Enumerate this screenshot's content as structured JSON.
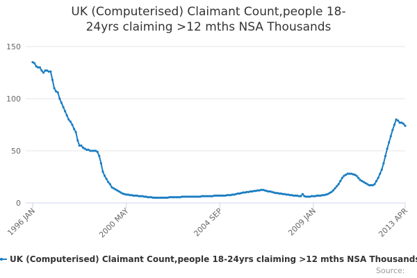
{
  "chart_data": {
    "type": "line",
    "title": "UK (Computerised) Claimant Count,people 18-24yrs claiming >12 mths NSA Thousands",
    "credits": "Source:",
    "categories": [
      "1996 JAN",
      null,
      null,
      null,
      null,
      null,
      null,
      null,
      null,
      null,
      null,
      null,
      null,
      null,
      null,
      null,
      null,
      null,
      null,
      null,
      null,
      null,
      null,
      null,
      null,
      null,
      null,
      null,
      null,
      null,
      null,
      null,
      null,
      null,
      null,
      null,
      null,
      null,
      null,
      null,
      null,
      null,
      null,
      null,
      null,
      null,
      null,
      null,
      null,
      null,
      null,
      null,
      "2000 MAY",
      null,
      null,
      null,
      null,
      null,
      null,
      null,
      null,
      null,
      null,
      null,
      null,
      null,
      null,
      null,
      null,
      null,
      null,
      null,
      null,
      null,
      null,
      null,
      null,
      null,
      null,
      null,
      null,
      null,
      null,
      null,
      null,
      null,
      null,
      null,
      null,
      null,
      null,
      null,
      null,
      null,
      null,
      null,
      null,
      null,
      null,
      null,
      null,
      null,
      null,
      null,
      "2004 SEP",
      null,
      null,
      null,
      null,
      null,
      null,
      null,
      null,
      null,
      null,
      null,
      null,
      null,
      null,
      null,
      null,
      null,
      null,
      null,
      null,
      null,
      null,
      null,
      null,
      null,
      null,
      null,
      null,
      null,
      null,
      null,
      null,
      null,
      null,
      null,
      null,
      null,
      null,
      null,
      null,
      null,
      null,
      null,
      null,
      null,
      null,
      null,
      null,
      null,
      null,
      null,
      "2009 JAN",
      null,
      null,
      null,
      null,
      null,
      null,
      null,
      null,
      null,
      null,
      null,
      null,
      null,
      null,
      null,
      null,
      null,
      null,
      null,
      null,
      null,
      null,
      null,
      null,
      null,
      null,
      null,
      null,
      null,
      null,
      null,
      null,
      null,
      null,
      null,
      null,
      null,
      null,
      null,
      null,
      null,
      null,
      null,
      null,
      null,
      null,
      null,
      null,
      null,
      null,
      "2013 APR"
    ],
    "series": [
      {
        "name": "UK (Computerised) Claimant Count,people 18-24yrs claiming >12 mths NSA Thousands",
        "color": "#1a7dc2",
        "values": [
          135,
          134,
          131,
          130,
          130,
          127,
          125,
          127,
          127,
          126,
          126,
          118,
          110,
          107,
          106,
          100,
          96,
          92,
          88,
          84,
          80,
          78,
          75,
          71,
          68,
          60,
          55,
          55,
          53,
          52,
          51,
          51,
          50,
          50,
          50,
          50,
          49,
          45,
          38,
          30,
          26,
          23,
          20,
          18,
          15,
          14,
          13,
          12,
          11,
          10,
          9,
          8.5,
          8,
          8,
          7.5,
          7.5,
          7,
          7,
          7,
          6.5,
          6.5,
          6.5,
          6,
          6,
          5.5,
          5.5,
          5.5,
          5,
          5,
          5,
          5,
          5,
          5,
          5,
          5,
          5,
          5.5,
          5.5,
          5.5,
          5.5,
          5.5,
          5.5,
          5.5,
          6,
          6,
          6,
          6,
          6,
          6,
          6,
          6,
          6,
          6,
          6,
          6.5,
          6.5,
          6.5,
          6.5,
          6.5,
          6.5,
          6.5,
          7,
          7,
          7,
          7,
          7,
          7,
          7,
          7.5,
          7.5,
          7.5,
          8,
          8,
          8.5,
          9,
          9,
          9.5,
          10,
          10,
          10.5,
          10.5,
          11,
          11,
          11.5,
          11.5,
          12,
          12,
          12.5,
          12.5,
          12,
          11.5,
          11,
          11,
          10.5,
          10,
          9.5,
          9.5,
          9,
          9,
          8.5,
          8.5,
          8,
          8,
          7.5,
          7.5,
          7,
          7,
          7,
          6.5,
          6.5,
          8.5,
          6.5,
          6,
          6,
          6,
          6.5,
          6.5,
          6.5,
          7,
          7,
          7,
          7.5,
          7.5,
          8,
          8.5,
          9.5,
          10.5,
          12,
          14,
          16,
          18,
          21,
          24,
          26,
          27,
          28,
          28,
          28,
          27.5,
          27,
          26,
          24,
          22,
          21,
          20,
          19,
          18,
          17,
          17,
          17,
          18,
          21,
          24,
          28,
          32,
          38,
          45,
          52,
          58,
          64,
          70,
          75,
          80,
          79,
          77,
          77,
          76,
          74
        ]
      }
    ],
    "ylim": [
      0,
      150
    ],
    "yticks": [
      0,
      50,
      100,
      150
    ],
    "grid": true
  }
}
